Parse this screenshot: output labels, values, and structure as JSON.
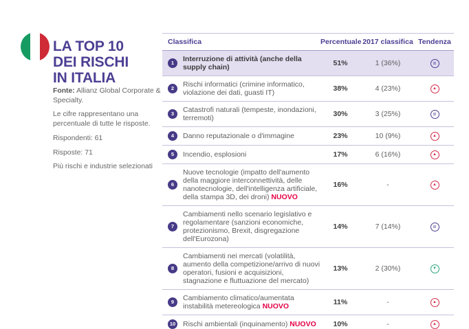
{
  "colors": {
    "brand_purple": "#4c3f93",
    "rank_circle": "#473a87",
    "row_highlight": "#e3def0",
    "separator": "#c6c0da",
    "text_gray": "#5e5e5e",
    "text_dark": "#3c3c3c",
    "trend_up_red": "#d62b4b",
    "trend_down_green": "#2ba47d",
    "nuovo_red": "#e40046",
    "flag_green": "#169b62",
    "flag_red": "#ce2b37"
  },
  "sidebar": {
    "flag": "italy-flag",
    "title_lines": [
      "LA TOP 10",
      "DEI RISCHI",
      "IN ITALIA"
    ],
    "source_label": "Fonte:",
    "source_text": "Allianz Global Corporate & Specialty.",
    "note": "Le cifre rappresentano una percentuale di tutte le risposte.",
    "respondents": "Rispondenti: 61",
    "responses": "Risposte: 71",
    "selection": "Più rischi e industrie selezionati"
  },
  "table": {
    "new_label": "NUOVO",
    "trend_symbols": {
      "equal": "=",
      "up": "▲",
      "down": "▼"
    }
  },
  "chart_data": {
    "type": "table",
    "title": "LA TOP 10 DEI RISCHI IN ITALIA",
    "columns": [
      "Classifica",
      "Percentuale",
      "2017 classifica",
      "Tendenza"
    ],
    "rows": [
      {
        "rank": "1",
        "risk": "Interruzione di attività (anche della supply chain)",
        "percent": "51%",
        "previous_2017": "1 (36%)",
        "trend": "equal",
        "nuovo": false,
        "highlight": true
      },
      {
        "rank": "2",
        "risk": "Rischi informatici (crimine informatico, violazione dei dati, guasti IT)",
        "percent": "38%",
        "previous_2017": "4 (23%)",
        "trend": "up",
        "nuovo": false,
        "highlight": false
      },
      {
        "rank": "3",
        "risk": "Catastrofi naturali (tempeste, inondazioni, terremoti)",
        "percent": "30%",
        "previous_2017": "3 (25%)",
        "trend": "equal",
        "nuovo": false,
        "highlight": false
      },
      {
        "rank": "4",
        "risk": "Danno reputazionale o d'immagine",
        "percent": "23%",
        "previous_2017": "10 (9%)",
        "trend": "up",
        "nuovo": false,
        "highlight": false
      },
      {
        "rank": "5",
        "risk": "Incendio, esplosioni",
        "percent": "17%",
        "previous_2017": "6 (16%)",
        "trend": "up",
        "nuovo": false,
        "highlight": false
      },
      {
        "rank": "6",
        "risk": "Nuove tecnologie (impatto dell'aumento della maggiore interconnettività, delle nanotecnologie, dell'intelligenza artificiale, della stampa 3D, dei droni)",
        "percent": "16%",
        "previous_2017": "-",
        "trend": "up",
        "nuovo": true,
        "highlight": false
      },
      {
        "rank": "7",
        "risk": "Cambiamenti nello scenario legislativo e regolamentare (sanzioni economiche, protezionismo, Brexit, disgregazione dell'Eurozona)",
        "percent": "14%",
        "previous_2017": "7 (14%)",
        "trend": "equal",
        "nuovo": false,
        "highlight": false
      },
      {
        "rank": "8",
        "risk": "Cambiamenti nei mercati (volatilità, aumento della competizione/arrivo di nuovi operatori, fusioni e acquisizioni, stagnazione e fluttuazione del mercato)",
        "percent": "13%",
        "previous_2017": "2 (30%)",
        "trend": "down",
        "nuovo": false,
        "highlight": false
      },
      {
        "rank": "9",
        "risk": "Cambiamento climatico/aumentata instabilità metereologica",
        "percent": "11%",
        "previous_2017": "-",
        "trend": "up",
        "nuovo": true,
        "highlight": false
      },
      {
        "rank": "10",
        "risk": "Rischi ambientali (inquinamento)",
        "percent": "10%",
        "previous_2017": "-",
        "trend": "up",
        "nuovo": true,
        "highlight": false
      }
    ]
  }
}
